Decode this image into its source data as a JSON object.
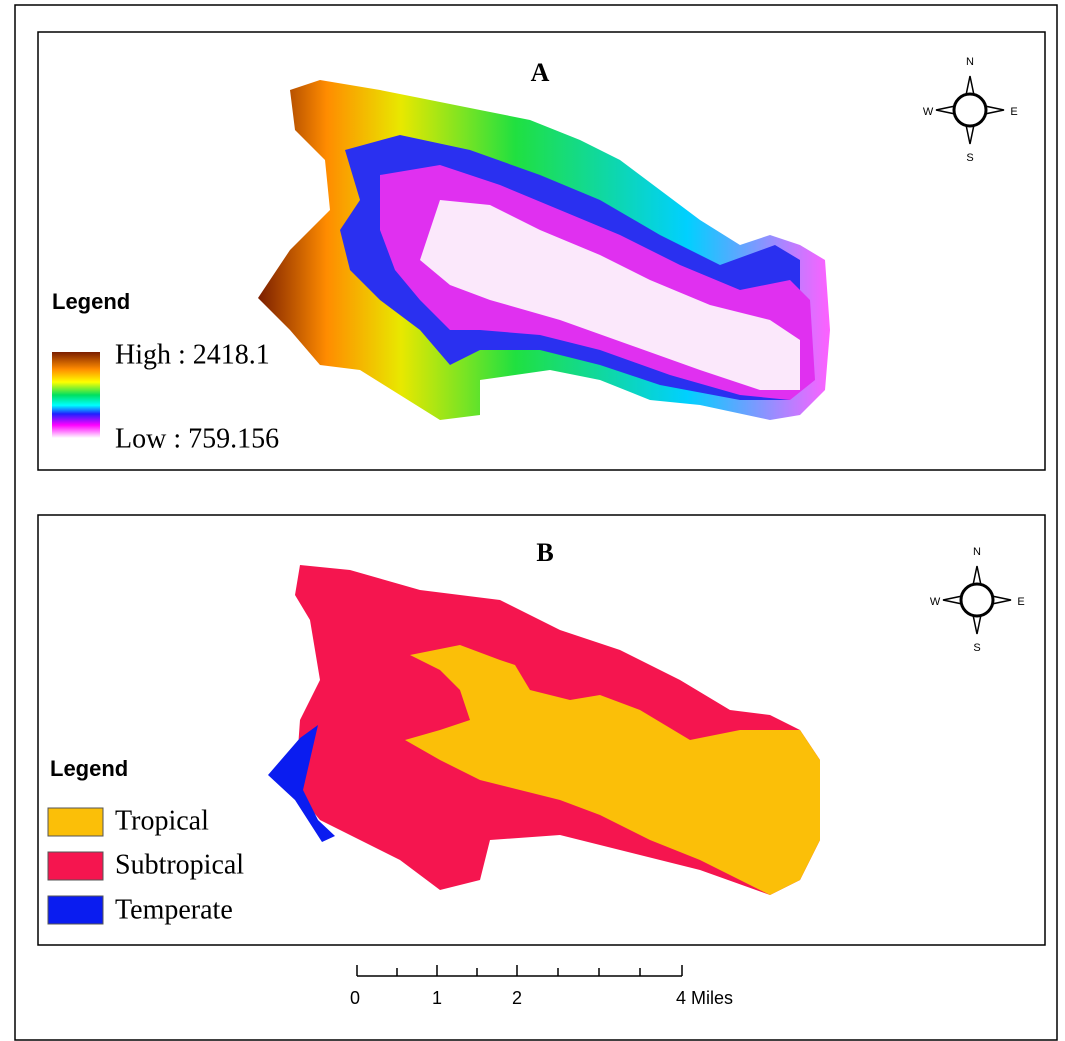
{
  "panels": [
    {
      "title": "A",
      "legend": {
        "title": "Legend",
        "high": "High : 2418.1",
        "low": "Low : 759.156"
      },
      "compass": {
        "n": "N",
        "e": "E",
        "s": "S",
        "w": "W"
      }
    },
    {
      "title": "B",
      "legend": {
        "title": "Legend",
        "items": [
          {
            "label": "Tropical",
            "color": "#fbbf08"
          },
          {
            "label": "Subtropical",
            "color": "#f5154f"
          },
          {
            "label": "Temperate",
            "color": "#0a1cf0"
          }
        ]
      },
      "compass": {
        "n": "N",
        "e": "E",
        "s": "S",
        "w": "W"
      }
    }
  ],
  "scale_bar": {
    "labels": [
      "0",
      "1",
      "2",
      "4 Miles"
    ]
  }
}
